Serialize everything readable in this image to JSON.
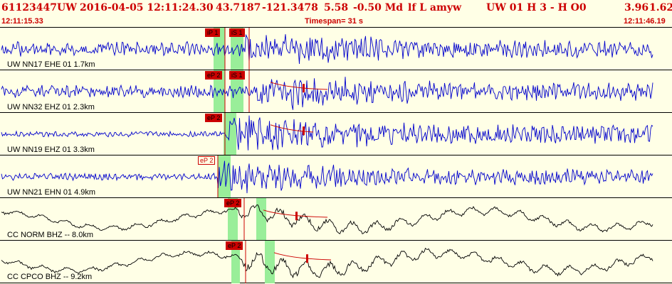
{
  "header": {
    "event_id": "61123447",
    "network": "UW",
    "datetime": "2016-04-05 12:11:24.30",
    "lat": "43.7187",
    "lon": "-121.3478",
    "depth": "5.58",
    "magnitude": "-0.50 Md",
    "flags": "lf  L amyw",
    "quality": "UW 01  H   3  -  H O0",
    "rms": "3.96",
    "gap": "1.62"
  },
  "subheader": {
    "start_time": "12:11:15.33",
    "timespan": "Timespan=  31 s",
    "end_time": "12:11:46.19"
  },
  "colors": {
    "background": "#FFFFE6",
    "trace_blue": "#0000CC",
    "trace_black": "#000000",
    "pick_red": "#CC0000",
    "window_green": "#99EE99"
  },
  "traces": [
    {
      "label": "UW NN17 EHE 01 1.7km",
      "color_key": "blue",
      "picks": [
        {
          "text": "iP 1",
          "style": "red"
        },
        {
          "text": "iS 1",
          "style": "red"
        }
      ]
    },
    {
      "label": "UW NN32 EHZ 01 2.3km",
      "color_key": "blue",
      "picks": [
        {
          "text": "eP 2",
          "style": "red"
        },
        {
          "text": "iS 1",
          "style": "red"
        }
      ]
    },
    {
      "label": "UW NN19 EHZ 01 3.3km",
      "color_key": "blue",
      "picks": [
        {
          "text": "eP 2",
          "style": "red"
        }
      ]
    },
    {
      "label": "UW NN21 EHN 01 4.9km",
      "color_key": "blue",
      "picks": [
        {
          "text": "eP 2",
          "style": "outline"
        }
      ]
    },
    {
      "label": "CC NORM BHZ -- 8.0km",
      "color_key": "black",
      "picks": [
        {
          "text": "eP 2",
          "style": "red"
        }
      ]
    },
    {
      "label": "CC CPCO BHZ -- 9.2km",
      "color_key": "black",
      "picks": [
        {
          "text": "eP 2",
          "style": "red"
        }
      ]
    }
  ]
}
